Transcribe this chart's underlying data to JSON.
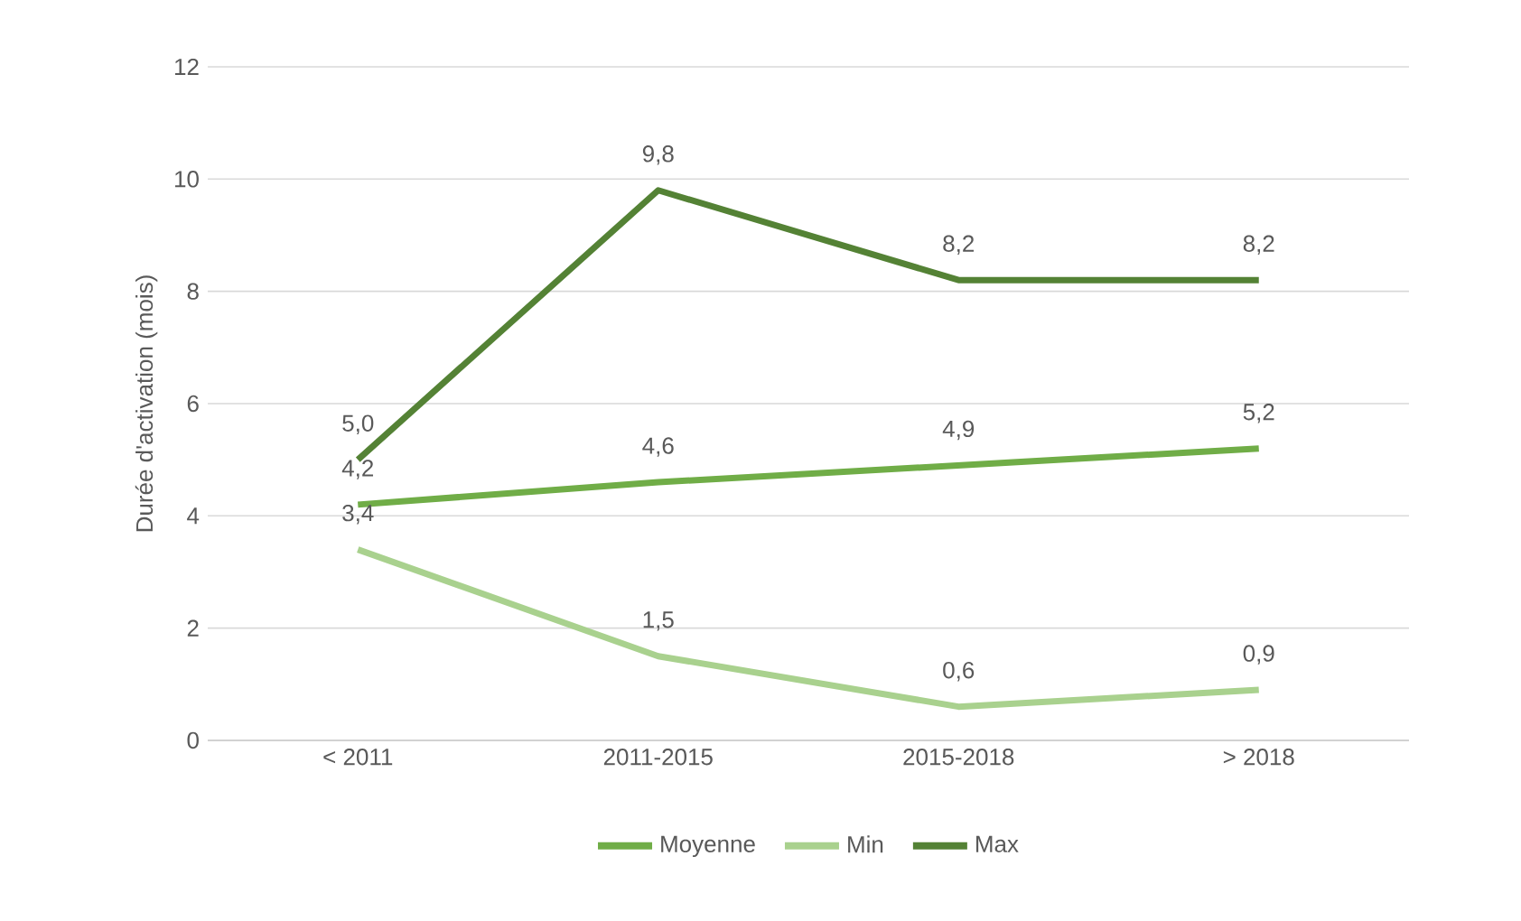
{
  "chart_data": {
    "type": "line",
    "ylabel": "Durée d'activation (mois)",
    "categories": [
      "< 2011",
      "2011-2015",
      "2015-2018",
      "> 2018"
    ],
    "series": [
      {
        "name": "Moyenne",
        "color": "#70ad47",
        "values": [
          4.2,
          4.6,
          4.9,
          5.2
        ],
        "value_labels": [
          "4,2",
          "4,6",
          "4,9",
          "5,2"
        ]
      },
      {
        "name": "Min",
        "color": "#a9d18e",
        "values": [
          3.4,
          1.5,
          0.6,
          0.9
        ],
        "value_labels": [
          "3,4",
          "1,5",
          "0,6",
          "0,9"
        ]
      },
      {
        "name": "Max",
        "color": "#548235",
        "values": [
          5.0,
          9.8,
          8.2,
          8.2
        ],
        "value_labels": [
          "5,0",
          "9,8",
          "8,2",
          "8,2"
        ]
      }
    ],
    "ylim": [
      0,
      12
    ],
    "yticks": [
      0,
      2,
      4,
      6,
      8,
      10,
      12
    ],
    "grid": "y",
    "legend": "bottom",
    "marker": "none",
    "line_style": "solid"
  }
}
